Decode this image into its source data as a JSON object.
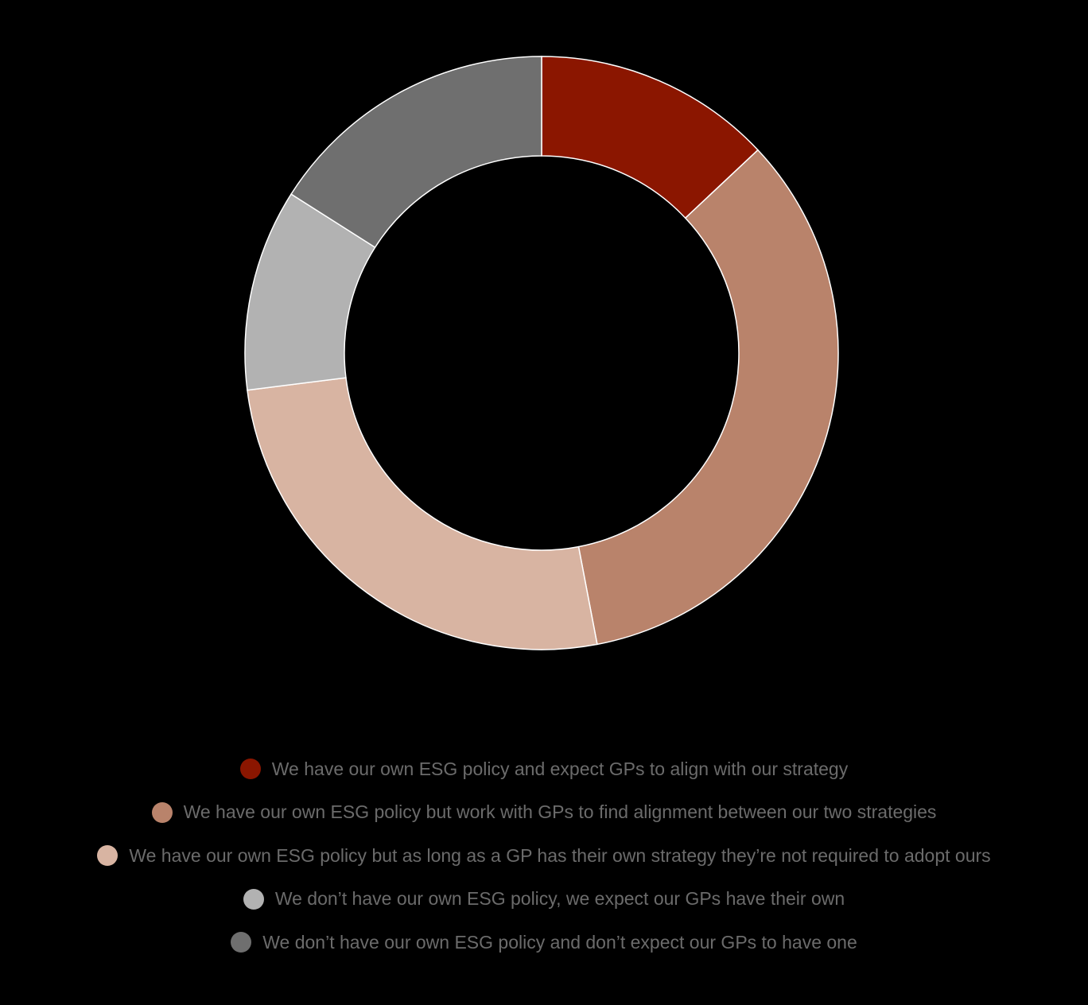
{
  "chart_data": {
    "type": "pie",
    "variant": "donut",
    "title": "",
    "legend_position": "bottom",
    "slices": [
      {
        "label": "We have our own ESG policy and expect GPs to align with our strategy",
        "value": 13,
        "color": "#8b1600"
      },
      {
        "label": "We have our own ESG policy but work with GPs to find alignment between our two strategies",
        "value": 34,
        "color": "#b9836b"
      },
      {
        "label": "We have our own ESG policy but as long as a GP has their own strategy they’re not required to adopt ours",
        "value": 26,
        "color": "#d8b4a2"
      },
      {
        "label": "We don’t have our own ESG policy, we expect our GPs have their own",
        "value": 11,
        "color": "#b2b2b2"
      },
      {
        "label": "We don’t have our own ESG policy and don’t expect our GPs to have one",
        "value": 16,
        "color": "#6f6f6f"
      }
    ]
  }
}
